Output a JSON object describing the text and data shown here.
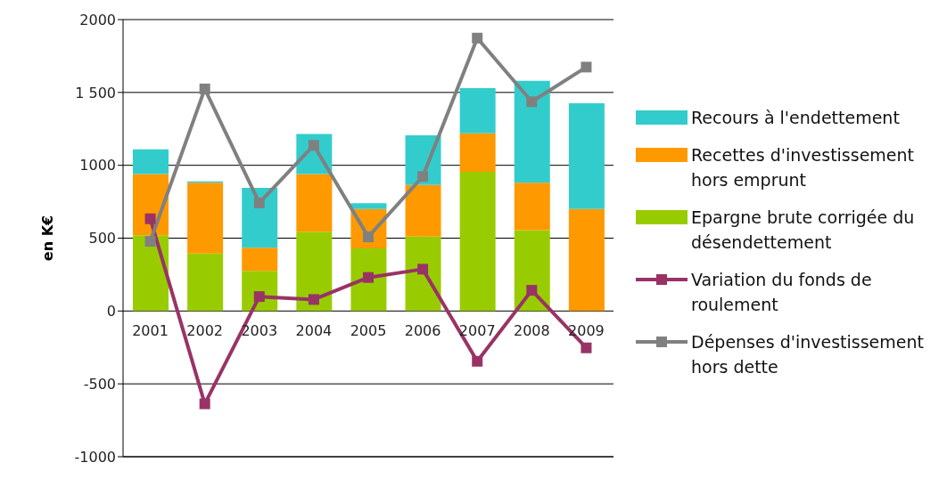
{
  "chart_data": {
    "type": "bar",
    "stacked": true,
    "ylabel": "en K€",
    "categories": [
      "2001",
      "2002",
      "2003",
      "2004",
      "2005",
      "2006",
      "2007",
      "2008",
      "2009"
    ],
    "series": [
      {
        "name": "Epargne brute corrigée du désendettement",
        "color": "#99cc00",
        "values": [
          520,
          395,
          275,
          545,
          430,
          510,
          955,
          555,
          0
        ]
      },
      {
        "name": "Recettes d'investissement hors emprunt",
        "color": "#ff9900",
        "values": [
          420,
          485,
          160,
          395,
          270,
          355,
          265,
          325,
          700
        ]
      },
      {
        "name": "Recours à l'endettement",
        "color": "#33cccc",
        "values": [
          170,
          10,
          410,
          275,
          40,
          340,
          310,
          700,
          725
        ]
      },
      {
        "name": "Variation du fonds de roulement",
        "type": "line",
        "color": "#993366",
        "values": [
          633,
          -637,
          99,
          79,
          230,
          287,
          -345,
          142,
          -253
        ]
      },
      {
        "name": "Dépenses d'investissement hors dette",
        "type": "line",
        "color": "#808080",
        "values": [
          478,
          1524,
          742,
          1137,
          509,
          923,
          1873,
          1436,
          1674
        ]
      }
    ],
    "ylim": [
      -1000,
      2000
    ],
    "yticks": [
      {
        "value": -1000,
        "label": "-1000"
      },
      -500,
      0,
      500,
      {
        "value": 1000,
        "label": "1000"
      },
      {
        "value": 1500,
        "label": "1 500"
      },
      {
        "value": 2000,
        "label": "2000"
      }
    ],
    "grid": "y",
    "legend": "right",
    "marker": "square",
    "line_style": "solid"
  }
}
